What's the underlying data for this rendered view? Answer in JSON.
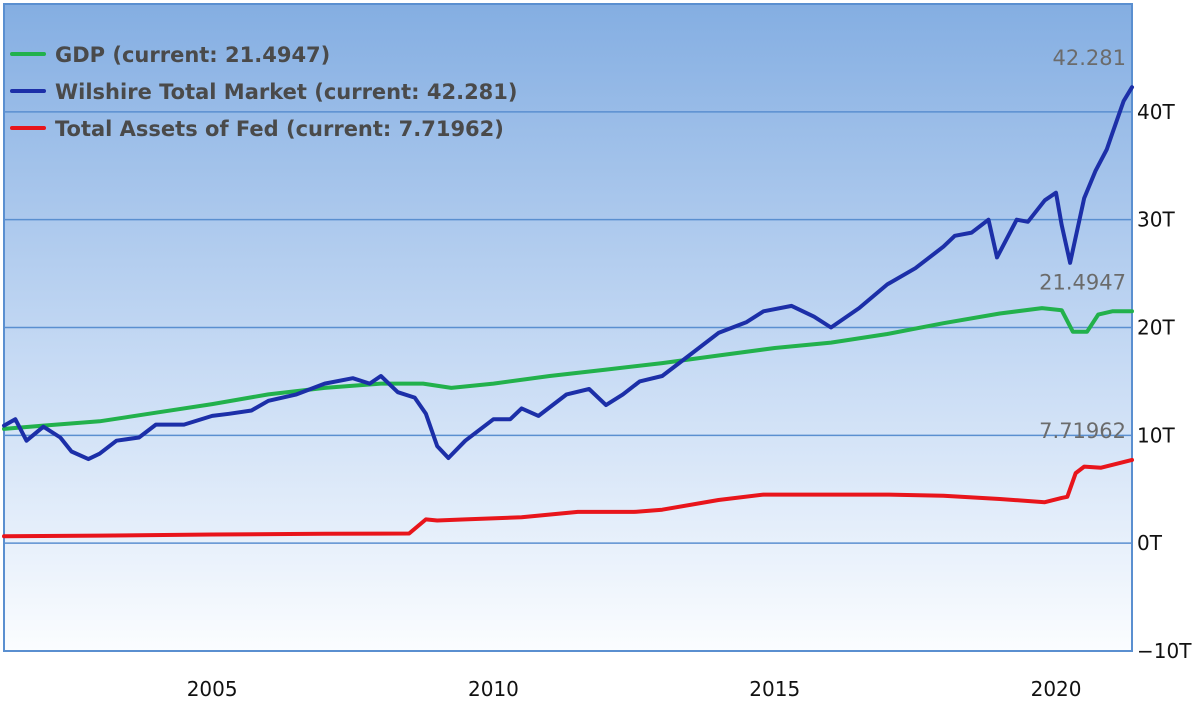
{
  "chart_data": {
    "type": "line",
    "x_axis": {
      "range": [
        2001.3,
        2021.35
      ],
      "ticks": [
        2005,
        2010,
        2015,
        2020
      ]
    },
    "y_axis": {
      "range": [
        -10,
        50
      ],
      "ticks": [
        -10,
        0,
        10,
        20,
        30,
        40
      ],
      "tick_labels": [
        "−10T",
        "0T",
        "10T",
        "20T",
        "30T",
        "40T"
      ],
      "position": "right"
    },
    "grid": true,
    "legend_position": "top-left",
    "series": [
      {
        "name": "GDP",
        "legend_label": "GDP (current: 21.4947)",
        "end_label": "21.4947",
        "color": "#22b14c",
        "x": [
          2001.3,
          2002,
          2003,
          2004,
          2005,
          2006,
          2007,
          2008,
          2008.75,
          2009.25,
          2010,
          2011,
          2012,
          2013,
          2014,
          2015,
          2016,
          2017,
          2018,
          2019,
          2019.75,
          2020.1,
          2020.3,
          2020.55,
          2020.75,
          2021.0,
          2021.35
        ],
        "values": [
          10.6,
          10.9,
          11.3,
          12.1,
          12.9,
          13.8,
          14.4,
          14.8,
          14.8,
          14.4,
          14.8,
          15.5,
          16.1,
          16.7,
          17.4,
          18.1,
          18.6,
          19.4,
          20.4,
          21.3,
          21.8,
          21.6,
          19.6,
          19.6,
          21.2,
          21.5,
          21.5
        ]
      },
      {
        "name": "Wilshire Total Market",
        "legend_label": "Wilshire Total Market (current: 42.281)",
        "end_label": "42.281",
        "color": "#1c2fa8",
        "x": [
          2001.3,
          2001.5,
          2001.7,
          2002.0,
          2002.3,
          2002.5,
          2002.8,
          2003.0,
          2003.3,
          2003.7,
          2004.0,
          2004.5,
          2005.0,
          2005.3,
          2005.7,
          2006.0,
          2006.5,
          2007.0,
          2007.5,
          2007.8,
          2008.0,
          2008.3,
          2008.6,
          2008.8,
          2009.0,
          2009.2,
          2009.5,
          2010.0,
          2010.3,
          2010.5,
          2010.8,
          2011.3,
          2011.7,
          2012.0,
          2012.3,
          2012.6,
          2013.0,
          2013.5,
          2014.0,
          2014.5,
          2014.8,
          2015.3,
          2015.7,
          2016.0,
          2016.5,
          2017.0,
          2017.5,
          2018.0,
          2018.2,
          2018.5,
          2018.8,
          2018.95,
          2019.3,
          2019.5,
          2019.8,
          2020.0,
          2020.1,
          2020.25,
          2020.5,
          2020.7,
          2020.9,
          2021.0,
          2021.2,
          2021.35
        ],
        "values": [
          10.9,
          11.5,
          9.5,
          10.8,
          9.8,
          8.5,
          7.8,
          8.3,
          9.5,
          9.8,
          11.0,
          11.0,
          11.8,
          12.0,
          12.3,
          13.2,
          13.8,
          14.8,
          15.3,
          14.8,
          15.5,
          14.0,
          13.5,
          12.0,
          9.0,
          7.9,
          9.5,
          11.5,
          11.5,
          12.5,
          11.8,
          13.8,
          14.3,
          12.8,
          13.8,
          15.0,
          15.5,
          17.5,
          19.5,
          20.5,
          21.5,
          22.0,
          21.0,
          20.0,
          21.8,
          24.0,
          25.5,
          27.5,
          28.5,
          28.8,
          30.0,
          26.5,
          30.0,
          29.8,
          31.8,
          32.5,
          29.5,
          26.0,
          32.0,
          34.5,
          36.5,
          38.0,
          41.0,
          42.281
        ]
      },
      {
        "name": "Total Assets of Fed",
        "legend_label": "Total Assets of Fed (current: 7.71962)",
        "end_label": "7.71962",
        "color": "#e8151b",
        "x": [
          2001.3,
          2003,
          2005,
          2007,
          2008.5,
          2008.8,
          2009.0,
          2009.5,
          2010.5,
          2011.5,
          2012.5,
          2013.0,
          2014.0,
          2014.8,
          2016.0,
          2017.0,
          2018.0,
          2019.0,
          2019.8,
          2020.1,
          2020.2,
          2020.35,
          2020.5,
          2020.8,
          2021.35
        ],
        "values": [
          0.65,
          0.7,
          0.8,
          0.88,
          0.9,
          2.2,
          2.1,
          2.2,
          2.4,
          2.9,
          2.9,
          3.1,
          4.0,
          4.5,
          4.5,
          4.5,
          4.4,
          4.1,
          3.8,
          4.2,
          4.3,
          6.5,
          7.1,
          7.0,
          7.72
        ]
      }
    ]
  }
}
